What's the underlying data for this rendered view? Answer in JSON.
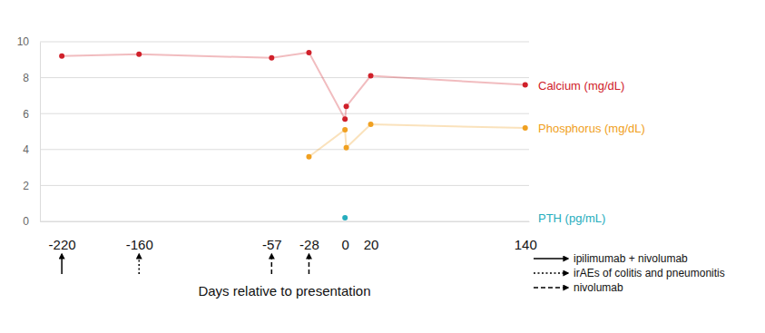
{
  "chart_data": {
    "type": "line",
    "x_label": "Days relative to presentation",
    "xlim": [
      -237,
      143
    ],
    "xticks": [
      -220,
      -160,
      -57,
      -28,
      0,
      20,
      140
    ],
    "ylim": [
      0,
      10
    ],
    "yticks": [
      0,
      2,
      4,
      6,
      8,
      10
    ],
    "grid": true,
    "marker": "circle",
    "series": [
      {
        "name": "Calcium (mg/dL)",
        "color": "#d0202a",
        "x": [
          -220,
          -160,
          -57,
          -28,
          0,
          1,
          20,
          140
        ],
        "values": [
          9.2,
          9.3,
          9.1,
          9.4,
          5.7,
          6.4,
          8.1,
          7.6
        ]
      },
      {
        "name": "Phosphorus (mg/dL)",
        "color": "#f0a020",
        "x": [
          -28,
          0,
          1,
          20,
          140
        ],
        "values": [
          3.6,
          5.1,
          4.1,
          5.4,
          5.2
        ]
      },
      {
        "name": "PTH (pg/mL)",
        "color": "#26adbd",
        "x": [
          0
        ],
        "values": [
          0.2
        ]
      }
    ],
    "events": [
      {
        "x": -220,
        "line_style": "solid",
        "label": "ipilimumab + nivolumab"
      },
      {
        "x": -160,
        "line_style": "dotted",
        "label": "irAEs of colitis and pneumonitis"
      },
      {
        "x": -57,
        "line_style": "dashed",
        "label": "nivolumab"
      },
      {
        "x": -28,
        "line_style": "dashed",
        "label": "nivolumab"
      }
    ]
  }
}
